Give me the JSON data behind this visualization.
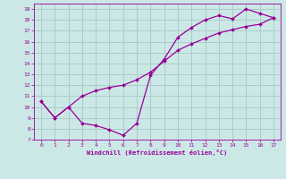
{
  "xlabel": "Windchill (Refroidissement éolien,°C)",
  "ylabel": "",
  "background_color": "#cce8e6",
  "grid_color": "#aaccca",
  "line_color": "#990099",
  "xlim": [
    -0.5,
    17.5
  ],
  "ylim": [
    7,
    19.5
  ],
  "xticks": [
    0,
    1,
    2,
    3,
    4,
    5,
    6,
    7,
    8,
    9,
    10,
    11,
    12,
    13,
    14,
    15,
    16,
    17
  ],
  "yticks": [
    7,
    8,
    9,
    10,
    11,
    12,
    13,
    14,
    15,
    16,
    17,
    18,
    19
  ],
  "curve1_x": [
    0,
    1,
    2,
    3,
    4,
    5,
    6,
    7,
    8,
    9,
    10,
    11,
    12,
    13,
    14,
    15,
    16,
    17
  ],
  "curve1_y": [
    10.5,
    9.0,
    10.0,
    8.5,
    8.3,
    7.9,
    7.4,
    8.5,
    12.9,
    14.4,
    16.4,
    17.3,
    18.0,
    18.4,
    18.1,
    19.0,
    18.6,
    18.2
  ],
  "curve2_x": [
    0,
    1,
    2,
    3,
    4,
    5,
    6,
    7,
    8,
    9,
    10,
    11,
    12,
    13,
    14,
    15,
    16,
    17
  ],
  "curve2_y": [
    10.5,
    9.0,
    10.0,
    11.0,
    11.5,
    11.8,
    12.0,
    12.5,
    13.2,
    14.2,
    15.2,
    15.8,
    16.3,
    16.8,
    17.1,
    17.4,
    17.6,
    18.2
  ]
}
